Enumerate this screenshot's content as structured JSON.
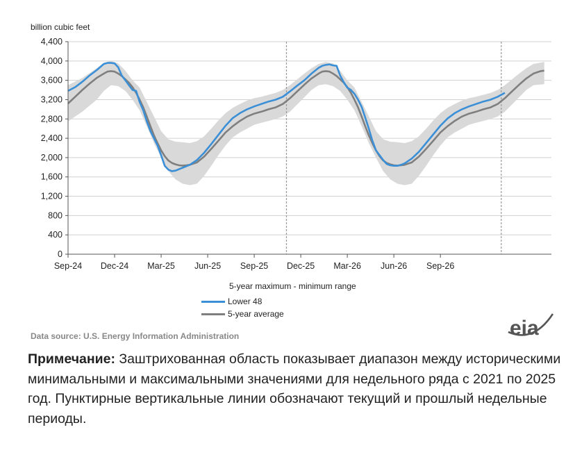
{
  "chart_data": {
    "type": "area",
    "unit_label": "billion cubic feet",
    "ylim": [
      0,
      4400
    ],
    "yticks": [
      "0",
      "400",
      "800",
      "1,200",
      "1,600",
      "2,000",
      "2,400",
      "2,800",
      "3,200",
      "3,600",
      "4,000",
      "4,400"
    ],
    "xticks": [
      "Sep-24",
      "Dec-24",
      "Mar-25",
      "Jun-25",
      "Sep-25",
      "Dec-25",
      "Mar-26",
      "Jun-26",
      "Sep-26"
    ],
    "x_weeks": "weekly series from Sep-2024 to Nov-2026",
    "range_label": "5-year maximum - minimum range",
    "series": [
      {
        "name": "Lower 48",
        "color": "#3a8fd6",
        "points": [
          [
            0,
            3380
          ],
          [
            2,
            3460
          ],
          [
            4,
            3570
          ],
          [
            6,
            3700
          ],
          [
            8,
            3810
          ],
          [
            10,
            3940
          ],
          [
            11,
            3960
          ],
          [
            12,
            3960
          ],
          [
            13,
            3950
          ],
          [
            14,
            3870
          ],
          [
            15,
            3700
          ],
          [
            16,
            3600
          ],
          [
            17,
            3500
          ],
          [
            18,
            3400
          ],
          [
            19,
            3380
          ],
          [
            20,
            3150
          ],
          [
            21,
            2980
          ],
          [
            22,
            2750
          ],
          [
            23,
            2550
          ],
          [
            24,
            2400
          ],
          [
            25,
            2250
          ],
          [
            26,
            2050
          ],
          [
            27,
            1830
          ],
          [
            28,
            1750
          ],
          [
            29,
            1720
          ],
          [
            30,
            1730
          ],
          [
            31,
            1760
          ],
          [
            32,
            1790
          ],
          [
            33,
            1820
          ],
          [
            34,
            1850
          ],
          [
            36,
            1950
          ],
          [
            38,
            2100
          ],
          [
            40,
            2280
          ],
          [
            42,
            2470
          ],
          [
            44,
            2660
          ],
          [
            46,
            2820
          ],
          [
            48,
            2920
          ],
          [
            50,
            3000
          ],
          [
            52,
            3060
          ],
          [
            54,
            3110
          ],
          [
            56,
            3160
          ],
          [
            58,
            3200
          ],
          [
            60,
            3260
          ],
          [
            62,
            3370
          ],
          [
            64,
            3490
          ],
          [
            66,
            3600
          ],
          [
            68,
            3740
          ],
          [
            70,
            3860
          ],
          [
            71,
            3900
          ],
          [
            72,
            3920
          ],
          [
            73,
            3930
          ],
          [
            74,
            3910
          ],
          [
            75,
            3900
          ],
          [
            76,
            3700
          ],
          [
            77,
            3560
          ],
          [
            78,
            3450
          ],
          [
            79,
            3400
          ],
          [
            80,
            3320
          ],
          [
            81,
            3200
          ],
          [
            82,
            3050
          ],
          [
            83,
            2830
          ],
          [
            84,
            2600
          ],
          [
            85,
            2350
          ],
          [
            86,
            2150
          ],
          [
            87,
            2050
          ],
          [
            88,
            1950
          ],
          [
            89,
            1870
          ],
          [
            90,
            1840
          ],
          [
            91,
            1830
          ],
          [
            92,
            1830
          ],
          [
            93,
            1850
          ],
          [
            94,
            1880
          ],
          [
            96,
            1980
          ],
          [
            98,
            2120
          ],
          [
            100,
            2300
          ],
          [
            102,
            2480
          ],
          [
            104,
            2660
          ],
          [
            106,
            2810
          ],
          [
            108,
            2920
          ],
          [
            110,
            3000
          ],
          [
            112,
            3060
          ],
          [
            114,
            3110
          ],
          [
            116,
            3160
          ],
          [
            118,
            3200
          ],
          [
            120,
            3260
          ],
          [
            121,
            3300
          ],
          [
            122,
            3340
          ]
        ]
      },
      {
        "name": "5-year average",
        "color": "#7f7f7f",
        "points": [
          [
            0,
            3120
          ],
          [
            2,
            3260
          ],
          [
            4,
            3400
          ],
          [
            6,
            3530
          ],
          [
            8,
            3650
          ],
          [
            10,
            3740
          ],
          [
            11,
            3780
          ],
          [
            12,
            3790
          ],
          [
            13,
            3780
          ],
          [
            14,
            3740
          ],
          [
            15,
            3690
          ],
          [
            16,
            3620
          ],
          [
            17,
            3550
          ],
          [
            18,
            3460
          ],
          [
            19,
            3340
          ],
          [
            20,
            3200
          ],
          [
            21,
            3040
          ],
          [
            22,
            2850
          ],
          [
            23,
            2650
          ],
          [
            24,
            2460
          ],
          [
            25,
            2300
          ],
          [
            26,
            2150
          ],
          [
            27,
            2030
          ],
          [
            28,
            1940
          ],
          [
            29,
            1890
          ],
          [
            30,
            1860
          ],
          [
            31,
            1840
          ],
          [
            32,
            1835
          ],
          [
            33,
            1840
          ],
          [
            34,
            1850
          ],
          [
            36,
            1900
          ],
          [
            38,
            2020
          ],
          [
            40,
            2180
          ],
          [
            42,
            2350
          ],
          [
            44,
            2520
          ],
          [
            46,
            2650
          ],
          [
            48,
            2760
          ],
          [
            50,
            2850
          ],
          [
            52,
            2910
          ],
          [
            54,
            2950
          ],
          [
            56,
            3000
          ],
          [
            58,
            3040
          ],
          [
            60,
            3110
          ],
          [
            62,
            3230
          ],
          [
            64,
            3370
          ],
          [
            66,
            3510
          ],
          [
            68,
            3640
          ],
          [
            70,
            3740
          ],
          [
            71,
            3780
          ],
          [
            72,
            3790
          ],
          [
            73,
            3780
          ],
          [
            74,
            3740
          ],
          [
            75,
            3690
          ],
          [
            76,
            3620
          ],
          [
            77,
            3550
          ],
          [
            78,
            3460
          ],
          [
            79,
            3340
          ],
          [
            80,
            3200
          ],
          [
            81,
            3040
          ],
          [
            82,
            2850
          ],
          [
            83,
            2650
          ],
          [
            84,
            2460
          ],
          [
            85,
            2300
          ],
          [
            86,
            2150
          ],
          [
            87,
            2030
          ],
          [
            88,
            1940
          ],
          [
            89,
            1890
          ],
          [
            90,
            1860
          ],
          [
            91,
            1840
          ],
          [
            92,
            1835
          ],
          [
            93,
            1840
          ],
          [
            94,
            1850
          ],
          [
            96,
            1900
          ],
          [
            98,
            2020
          ],
          [
            100,
            2180
          ],
          [
            102,
            2350
          ],
          [
            104,
            2520
          ],
          [
            106,
            2650
          ],
          [
            108,
            2760
          ],
          [
            110,
            2850
          ],
          [
            112,
            2910
          ],
          [
            114,
            2950
          ],
          [
            116,
            3000
          ],
          [
            118,
            3040
          ],
          [
            120,
            3110
          ],
          [
            122,
            3230
          ],
          [
            124,
            3370
          ],
          [
            126,
            3510
          ],
          [
            128,
            3640
          ],
          [
            130,
            3740
          ],
          [
            132,
            3790
          ],
          [
            133,
            3800
          ]
        ]
      }
    ],
    "range_band": {
      "color": "#d9d9d9",
      "upper": [
        [
          0,
          3500
        ],
        [
          4,
          3650
        ],
        [
          8,
          3850
        ],
        [
          10,
          3960
        ],
        [
          12,
          4000
        ],
        [
          14,
          3950
        ],
        [
          16,
          3800
        ],
        [
          18,
          3600
        ],
        [
          20,
          3450
        ],
        [
          22,
          3150
        ],
        [
          24,
          2850
        ],
        [
          26,
          2550
        ],
        [
          28,
          2380
        ],
        [
          30,
          2330
        ],
        [
          32,
          2320
        ],
        [
          34,
          2300
        ],
        [
          36,
          2340
        ],
        [
          38,
          2440
        ],
        [
          40,
          2600
        ],
        [
          42,
          2770
        ],
        [
          44,
          2920
        ],
        [
          46,
          3030
        ],
        [
          48,
          3110
        ],
        [
          50,
          3180
        ],
        [
          52,
          3230
        ],
        [
          54,
          3260
        ],
        [
          56,
          3300
        ],
        [
          58,
          3340
        ],
        [
          60,
          3400
        ],
        [
          62,
          3500
        ],
        [
          64,
          3620
        ],
        [
          66,
          3740
        ],
        [
          68,
          3850
        ],
        [
          70,
          3940
        ],
        [
          72,
          3980
        ],
        [
          74,
          3950
        ],
        [
          76,
          3800
        ],
        [
          78,
          3600
        ],
        [
          80,
          3450
        ],
        [
          82,
          3150
        ],
        [
          84,
          2850
        ],
        [
          86,
          2550
        ],
        [
          88,
          2380
        ],
        [
          90,
          2330
        ],
        [
          92,
          2320
        ],
        [
          94,
          2300
        ],
        [
          96,
          2340
        ],
        [
          98,
          2440
        ],
        [
          100,
          2600
        ],
        [
          102,
          2770
        ],
        [
          104,
          2920
        ],
        [
          106,
          3030
        ],
        [
          108,
          3110
        ],
        [
          110,
          3180
        ],
        [
          112,
          3230
        ],
        [
          114,
          3260
        ],
        [
          116,
          3300
        ],
        [
          118,
          3340
        ],
        [
          120,
          3400
        ],
        [
          122,
          3500
        ],
        [
          124,
          3620
        ],
        [
          126,
          3740
        ],
        [
          128,
          3850
        ],
        [
          130,
          3940
        ],
        [
          133,
          3980
        ]
      ],
      "lower": [
        [
          0,
          2750
        ],
        [
          4,
          2950
        ],
        [
          8,
          3200
        ],
        [
          10,
          3380
        ],
        [
          12,
          3500
        ],
        [
          14,
          3480
        ],
        [
          16,
          3380
        ],
        [
          18,
          3200
        ],
        [
          20,
          2980
        ],
        [
          22,
          2650
        ],
        [
          24,
          2300
        ],
        [
          26,
          2000
        ],
        [
          28,
          1720
        ],
        [
          30,
          1550
        ],
        [
          32,
          1460
        ],
        [
          34,
          1430
        ],
        [
          36,
          1460
        ],
        [
          38,
          1620
        ],
        [
          40,
          1830
        ],
        [
          42,
          2050
        ],
        [
          44,
          2250
        ],
        [
          46,
          2420
        ],
        [
          48,
          2520
        ],
        [
          50,
          2600
        ],
        [
          52,
          2680
        ],
        [
          54,
          2720
        ],
        [
          56,
          2760
        ],
        [
          58,
          2800
        ],
        [
          60,
          2850
        ],
        [
          62,
          2950
        ],
        [
          64,
          3100
        ],
        [
          66,
          3250
        ],
        [
          68,
          3400
        ],
        [
          70,
          3500
        ],
        [
          72,
          3520
        ],
        [
          74,
          3480
        ],
        [
          76,
          3380
        ],
        [
          78,
          3200
        ],
        [
          80,
          2980
        ],
        [
          82,
          2650
        ],
        [
          84,
          2300
        ],
        [
          86,
          2000
        ],
        [
          88,
          1720
        ],
        [
          90,
          1550
        ],
        [
          92,
          1460
        ],
        [
          94,
          1430
        ],
        [
          96,
          1460
        ],
        [
          98,
          1620
        ],
        [
          100,
          1830
        ],
        [
          102,
          2050
        ],
        [
          104,
          2250
        ],
        [
          106,
          2420
        ],
        [
          108,
          2520
        ],
        [
          110,
          2600
        ],
        [
          112,
          2680
        ],
        [
          114,
          2720
        ],
        [
          116,
          2760
        ],
        [
          118,
          2800
        ],
        [
          120,
          2850
        ],
        [
          122,
          2950
        ],
        [
          124,
          3100
        ],
        [
          126,
          3250
        ],
        [
          128,
          3400
        ],
        [
          130,
          3500
        ],
        [
          133,
          3520
        ]
      ]
    },
    "vlines_week": [
      61,
      121
    ],
    "xtick_weeks": [
      0,
      13,
      26,
      39,
      52,
      65,
      78,
      91,
      104
    ],
    "grid": "horizontal",
    "legend_position": "bottom-center"
  },
  "source_text": "Data source:  U.S. Energy Information Administration",
  "logo_text": "eia",
  "note": {
    "label": "Примечание:",
    "text": " Заштрихованная область показывает диапазон между историческими минимальными и максимальными значениями для недельного ряда с 2021 по 2025 год. Пунктирные вертикальные линии обозначают текущий и прошлый недельные периоды."
  }
}
